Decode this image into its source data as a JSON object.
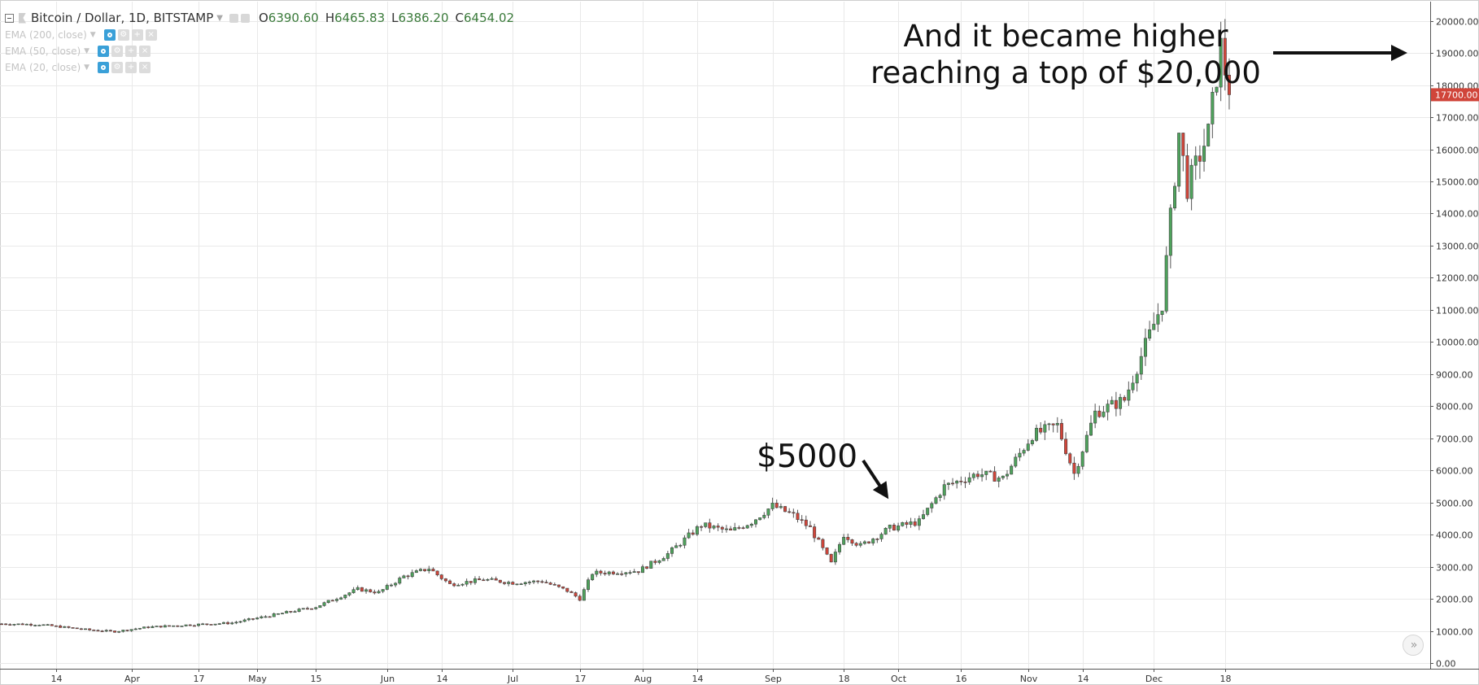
{
  "header": {
    "symbol": "Bitcoin / Dollar, 1D, BITSTAMP",
    "open_key": "O",
    "open": "6390.60",
    "high_key": "H",
    "high": "6465.83",
    "low_key": "L",
    "low": "6386.20",
    "close_key": "C",
    "close": "6454.02"
  },
  "indicators": [
    {
      "label": "EMA (200, close)"
    },
    {
      "label": "EMA (50, close)"
    },
    {
      "label": "EMA (20, close)"
    }
  ],
  "annotations": {
    "top_line1": "And it became higher",
    "top_line2": "reaching a top of $20,000",
    "mid": "$5000"
  },
  "controls": {
    "scroll_icon": "double-chevron-right-icon",
    "scroll_glyph": "»"
  },
  "colors": {
    "up": "#4ea35c",
    "down": "#d0453a",
    "grid": "#e9e9e9",
    "price_label_bg": "#d0453a"
  },
  "chart_data": {
    "type": "candlestick",
    "title": "Bitcoin / Dollar, 1D, BITSTAMP",
    "x_start": "2017-03-01",
    "x_ticks": [
      {
        "label": "14",
        "date": "2017-03-14"
      },
      {
        "label": "Apr",
        "date": "2017-04-01"
      },
      {
        "label": "17",
        "date": "2017-04-17"
      },
      {
        "label": "May",
        "date": "2017-05-01"
      },
      {
        "label": "15",
        "date": "2017-05-15"
      },
      {
        "label": "Jun",
        "date": "2017-06-01"
      },
      {
        "label": "14",
        "date": "2017-06-14"
      },
      {
        "label": "Jul",
        "date": "2017-07-01"
      },
      {
        "label": "17",
        "date": "2017-07-17"
      },
      {
        "label": "Aug",
        "date": "2017-08-01"
      },
      {
        "label": "14",
        "date": "2017-08-14"
      },
      {
        "label": "Sep",
        "date": "2017-09-01"
      },
      {
        "label": "18",
        "date": "2017-09-18"
      },
      {
        "label": "Oct",
        "date": "2017-10-01"
      },
      {
        "label": "16",
        "date": "2017-10-16"
      },
      {
        "label": "Nov",
        "date": "2017-11-01"
      },
      {
        "label": "14",
        "date": "2017-11-14"
      },
      {
        "label": "Dec",
        "date": "2017-12-01"
      },
      {
        "label": "18",
        "date": "2017-12-18"
      }
    ],
    "y_ticks": [
      "0.00",
      "1000.00",
      "2000.00",
      "3000.00",
      "4000.00",
      "5000.00",
      "6000.00",
      "7000.00",
      "8000.00",
      "9000.00",
      "10000.00",
      "11000.00",
      "12000.00",
      "13000.00",
      "14000.00",
      "15000.00",
      "16000.00",
      "17000.00",
      "18000.00",
      "19000.00",
      "20000.00"
    ],
    "ylim": [
      0,
      20600
    ],
    "last_price_label": "17700.00",
    "last_price": 17700,
    "close_path": [
      [
        "2017-03-01",
        1220
      ],
      [
        "2017-03-10",
        1200
      ],
      [
        "2017-03-17",
        1100
      ],
      [
        "2017-03-22",
        1030
      ],
      [
        "2017-03-28",
        980
      ],
      [
        "2017-04-05",
        1120
      ],
      [
        "2017-04-15",
        1190
      ],
      [
        "2017-04-25",
        1250
      ],
      [
        "2017-05-05",
        1500
      ],
      [
        "2017-05-15",
        1750
      ],
      [
        "2017-05-25",
        2300
      ],
      [
        "2017-05-30",
        2200
      ],
      [
        "2017-06-05",
        2700
      ],
      [
        "2017-06-11",
        2950
      ],
      [
        "2017-06-16",
        2450
      ],
      [
        "2017-06-24",
        2600
      ],
      [
        "2017-07-01",
        2500
      ],
      [
        "2017-07-08",
        2550
      ],
      [
        "2017-07-14",
        2250
      ],
      [
        "2017-07-17",
        2000
      ],
      [
        "2017-07-20",
        2800
      ],
      [
        "2017-07-31",
        2870
      ],
      [
        "2017-08-07",
        3400
      ],
      [
        "2017-08-15",
        4300
      ],
      [
        "2017-08-22",
        4100
      ],
      [
        "2017-08-27",
        4400
      ],
      [
        "2017-09-01",
        4900
      ],
      [
        "2017-09-06",
        4600
      ],
      [
        "2017-09-10",
        4200
      ],
      [
        "2017-09-15",
        3100
      ],
      [
        "2017-09-18",
        4000
      ],
      [
        "2017-09-22",
        3650
      ],
      [
        "2017-09-29",
        4200
      ],
      [
        "2017-10-06",
        4400
      ],
      [
        "2017-10-12",
        5500
      ],
      [
        "2017-10-20",
        5900
      ],
      [
        "2017-10-26",
        5750
      ],
      [
        "2017-11-02",
        7100
      ],
      [
        "2017-11-08",
        7400
      ],
      [
        "2017-11-12",
        5900
      ],
      [
        "2017-11-17",
        7800
      ],
      [
        "2017-11-24",
        8200
      ],
      [
        "2017-11-29",
        9900
      ],
      [
        "2017-12-03",
        11200
      ],
      [
        "2017-12-07",
        16500
      ],
      [
        "2017-12-09",
        14800
      ],
      [
        "2017-12-14",
        16500
      ],
      [
        "2017-12-17",
        19200
      ],
      [
        "2017-12-19",
        17700
      ]
    ]
  }
}
